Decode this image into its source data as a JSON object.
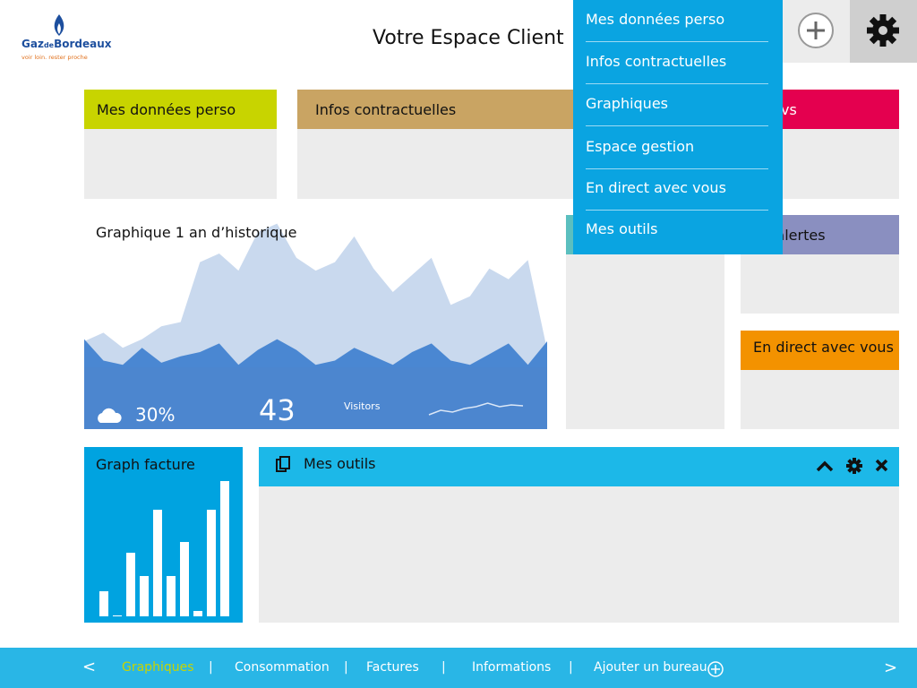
{
  "header": {
    "logo": {
      "brand_1": "Gaz",
      "brand_2": "de",
      "brand_3": "Bordeaux",
      "tagline": "voir loin. rester proche"
    },
    "title": "Votre Espace Client"
  },
  "menu": {
    "items": [
      "Mes données perso",
      "Infos contractuelles",
      "Graphiques",
      "Espace gestion",
      "En direct avec vous",
      "Mes outils"
    ]
  },
  "tiles": [
    {
      "title": "Mes données perso"
    },
    {
      "title": "Infos contractuelles"
    },
    {
      "title": "vs"
    },
    {
      "title": "s alertes"
    },
    {
      "title": "En direct avec vous"
    }
  ],
  "history_widget": {
    "title": "Graphique 1 an d’historique",
    "series": [
      {
        "values": [
          41,
          45,
          38,
          42,
          48,
          50,
          78,
          82,
          74,
          92,
          96,
          80,
          74,
          78,
          90,
          75,
          64,
          72,
          80,
          58,
          62,
          75,
          70,
          79,
          37
        ]
      },
      {
        "values": [
          42,
          32,
          30,
          38,
          31,
          34,
          36,
          40,
          30,
          37,
          42,
          37,
          30,
          32,
          38,
          34,
          30,
          36,
          40,
          32,
          30,
          35,
          40,
          30,
          41
        ]
      }
    ],
    "weather": "30%",
    "count": "43",
    "count_label": "Visitors",
    "sparkline": [
      3,
      8,
      6,
      10,
      12,
      16,
      12,
      14,
      13
    ]
  },
  "bill_widget": {
    "title": "Graph facture",
    "values": [
      28,
      1,
      71,
      45,
      119,
      45,
      83,
      6,
      119,
      151
    ]
  },
  "tools_widget": {
    "title": "Mes outils"
  },
  "footer": {
    "prev": "<",
    "tabs": [
      "Graphiques",
      "Consommation",
      "Factures",
      "Informations"
    ],
    "separator": "|",
    "add_tab": "Ajouter un bureau",
    "next": ">"
  }
}
